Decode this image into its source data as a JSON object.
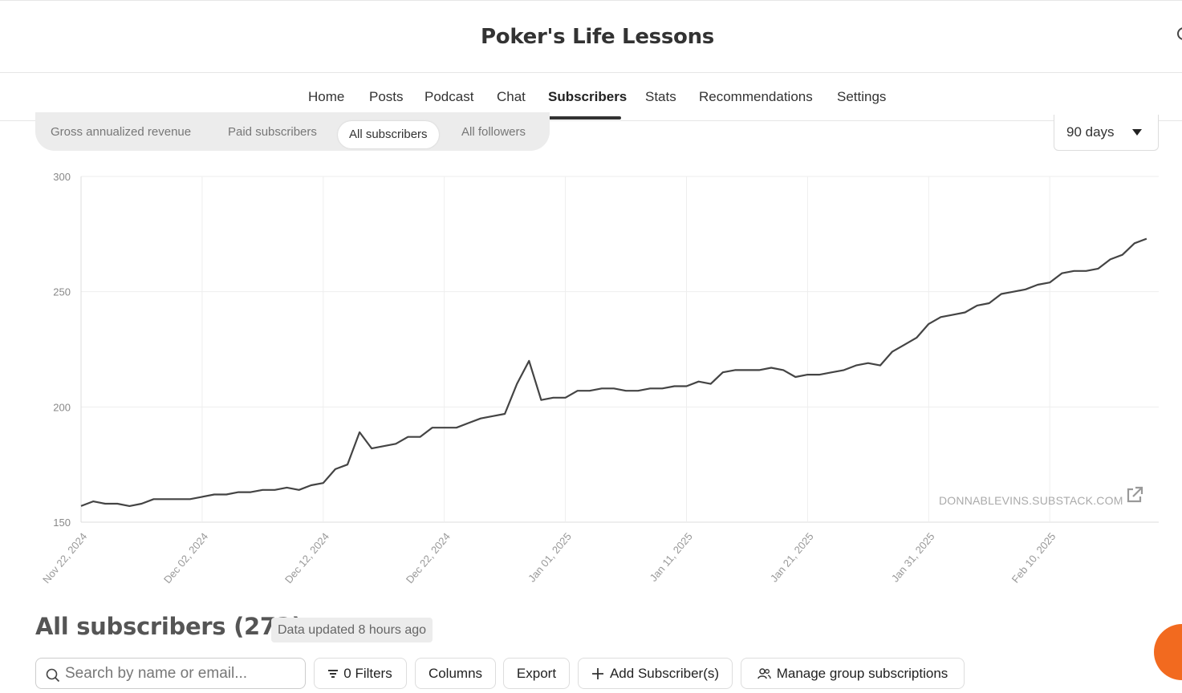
{
  "header": {
    "title": "Poker's Life Lessons"
  },
  "nav": {
    "items": [
      {
        "label": "Home"
      },
      {
        "label": "Posts"
      },
      {
        "label": "Podcast"
      },
      {
        "label": "Chat"
      },
      {
        "label": "Subscribers"
      },
      {
        "label": "Stats"
      },
      {
        "label": "Recommendations"
      },
      {
        "label": "Settings"
      }
    ],
    "active": "Subscribers"
  },
  "metric_tabs": {
    "items": [
      {
        "label": "Gross annualized revenue"
      },
      {
        "label": "Paid subscribers"
      },
      {
        "label": "All subscribers"
      },
      {
        "label": "All followers"
      }
    ],
    "active": "All subscribers"
  },
  "range_select": {
    "value": "90 days"
  },
  "chart": {
    "watermark": "DONNABLEVINS.SUBSTACK.COM"
  },
  "chart_data": {
    "type": "line",
    "title": "",
    "xlabel": "",
    "ylabel": "",
    "ylim": [
      150,
      300
    ],
    "y_ticks": [
      150,
      200,
      250,
      300
    ],
    "x_tick_labels": [
      "Nov 22, 2024",
      "Dec 02, 2024",
      "Dec 12, 2024",
      "Dec 22, 2024",
      "Jan 01, 2025",
      "Jan 11, 2025",
      "Jan 21, 2025",
      "Jan 31, 2025",
      "Feb 10, 2025"
    ],
    "x_tick_dates": [
      "2024-11-22",
      "2024-12-02",
      "2024-12-12",
      "2024-12-22",
      "2025-01-01",
      "2025-01-11",
      "2025-01-21",
      "2025-01-31",
      "2025-02-10"
    ],
    "x_start": "2024-11-22",
    "x_end": "2025-02-19",
    "grid": true,
    "color": "#444444",
    "series": [
      {
        "values": [
          157,
          159,
          158,
          158,
          157,
          158,
          160,
          160,
          160,
          160,
          161,
          162,
          162,
          163,
          163,
          164,
          164,
          165,
          164,
          166,
          167,
          173,
          175,
          189,
          182,
          183,
          184,
          187,
          187,
          191,
          191,
          191,
          193,
          195,
          196,
          197,
          210,
          220,
          203,
          204,
          204,
          207,
          207,
          208,
          208,
          207,
          207,
          208,
          208,
          209,
          209,
          211,
          210,
          215,
          216,
          216,
          216,
          217,
          216,
          213,
          214,
          214,
          215,
          216,
          218,
          219,
          218,
          224,
          227,
          230,
          236,
          239,
          240,
          241,
          244,
          245,
          249,
          250,
          251,
          253,
          254,
          258,
          259,
          259,
          260,
          264,
          266,
          271,
          273
        ]
      }
    ]
  },
  "subscribers": {
    "heading": "All subscribers (273)",
    "updated": "Data updated 8 hours ago"
  },
  "toolbar": {
    "search_placeholder": "Search by name or email...",
    "filters_label": "0 Filters",
    "columns_label": "Columns",
    "export_label": "Export",
    "add_label": "Add Subscriber(s)",
    "manage_label": "Manage group subscriptions"
  },
  "colors": {
    "accent": "#f26a1f",
    "line": "#444444",
    "grid": "#eeeeee"
  }
}
